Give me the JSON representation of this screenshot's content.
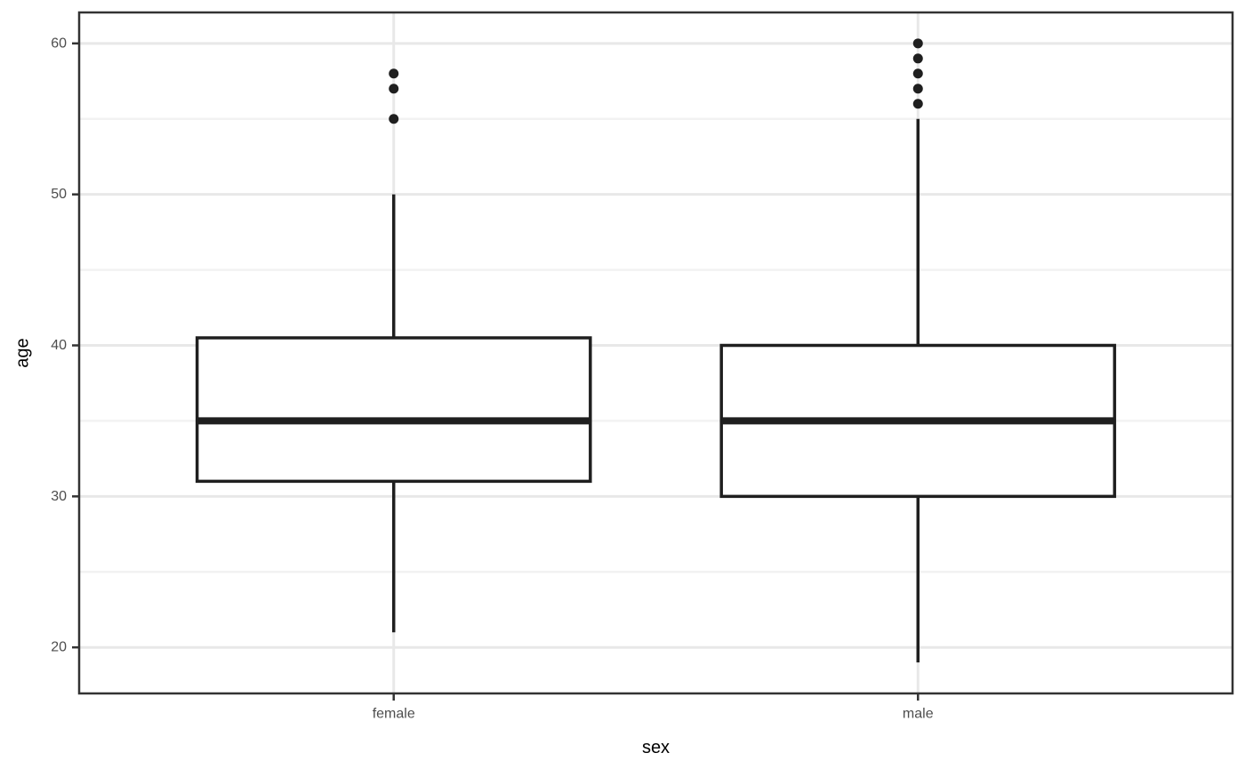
{
  "chart_data": {
    "type": "boxplot",
    "title": "",
    "xlabel": "sex",
    "ylabel": "age",
    "categories": [
      "female",
      "male"
    ],
    "ytick_labels": [
      "20",
      "30",
      "40",
      "50",
      "60"
    ],
    "yticks": [
      20,
      30,
      40,
      50,
      60
    ],
    "yticks_minor": [
      25,
      35,
      45,
      55
    ],
    "ylim": [
      16.95,
      62.05
    ],
    "grid": "on",
    "legend": "none",
    "series": [
      {
        "name": "female",
        "whisker_low": 21,
        "q1": 31,
        "median": 35,
        "q3": 40.5,
        "whisker_high": 50,
        "outliers": [
          55,
          57,
          58
        ]
      },
      {
        "name": "male",
        "whisker_low": 19,
        "q1": 30,
        "median": 35,
        "q3": 40,
        "whisker_high": 55,
        "outliers": [
          56,
          57,
          58,
          59,
          60
        ]
      }
    ],
    "colors": {
      "background": "#ffffff",
      "panel_background": "#ffffff",
      "panel_border": "#333333",
      "grid_major": "#e8e8e8",
      "grid_minor": "#f2f2f2",
      "box_stroke": "#1f1f1f",
      "box_fill": "#ffffff",
      "outlier_fill": "#1f1f1f",
      "tick_mark": "#333333",
      "tick_label": "#4d4d4d",
      "axis_title": "#000000"
    }
  }
}
